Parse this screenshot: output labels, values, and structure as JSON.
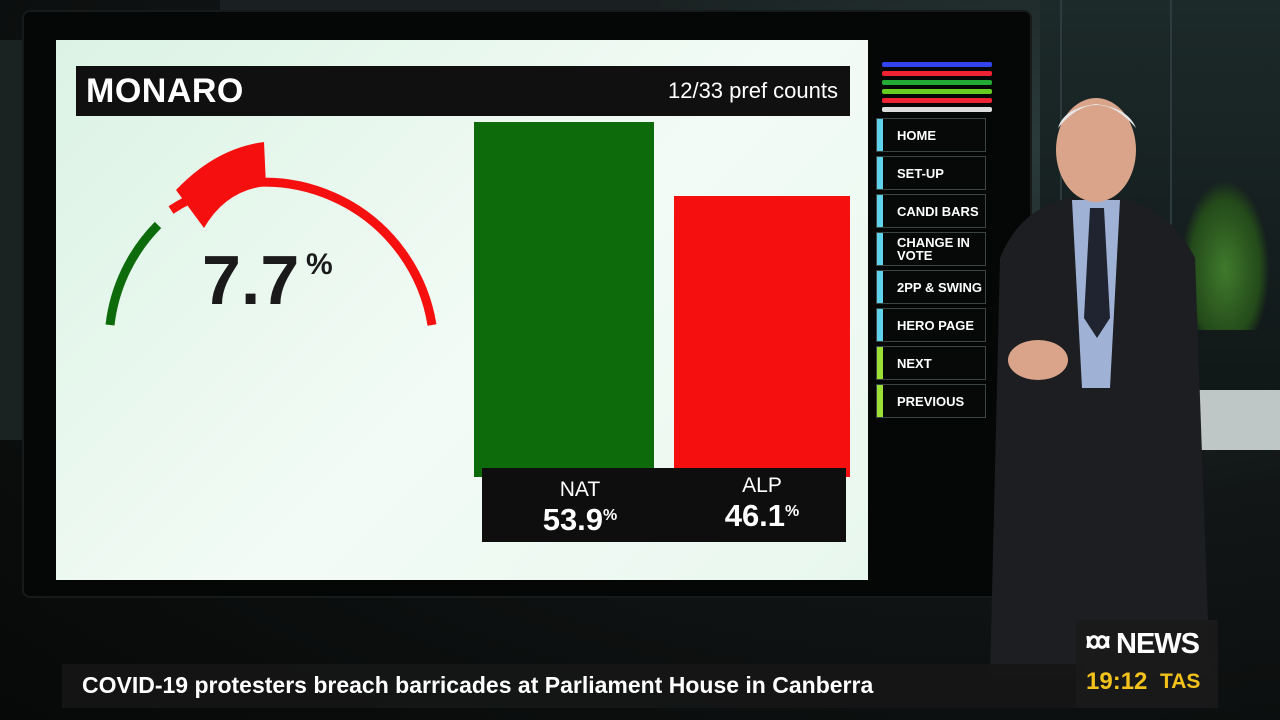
{
  "display": {
    "seat_name": "MONARO",
    "pref_counts": "12/33 pref counts",
    "swing": {
      "value": "7.7",
      "unit": "%",
      "gauge_colors": {
        "loser": "#f50f0f",
        "winner": "#0d6b0b"
      }
    },
    "parties": [
      {
        "name": "NAT",
        "pct_value": "53.9",
        "pct_unit": "%",
        "color": "#0d6b0b",
        "share": 53.9
      },
      {
        "name": "ALP",
        "pct_value": "46.1",
        "pct_unit": "%",
        "color": "#f50f0f",
        "share": 46.1
      }
    ]
  },
  "side_nav": {
    "swatch_colors": [
      "#3344ee",
      "#ee2233",
      "#22aa33",
      "#66cc22",
      "#ee2233",
      "#dddddd"
    ],
    "items": [
      {
        "label": "HOME",
        "accent": "#5fd3ec"
      },
      {
        "label": "SET-UP",
        "accent": "#5fd3ec"
      },
      {
        "label": "CANDI BARS",
        "accent": "#5fd3ec"
      },
      {
        "label": "CHANGE IN VOTE",
        "accent": "#5fd3ec"
      },
      {
        "label": "2PP & SWING",
        "accent": "#5fd3ec"
      },
      {
        "label": "HERO PAGE",
        "accent": "#5fd3ec"
      },
      {
        "label": "NEXT",
        "accent": "#9be035"
      },
      {
        "label": "PREVIOUS",
        "accent": "#9be035"
      }
    ]
  },
  "lower_third": {
    "headline": "COVID-19 protesters breach barricades at Parliament House in Canberra",
    "brand": "NEWS",
    "time": "19:12",
    "timezone": "TAS"
  }
}
